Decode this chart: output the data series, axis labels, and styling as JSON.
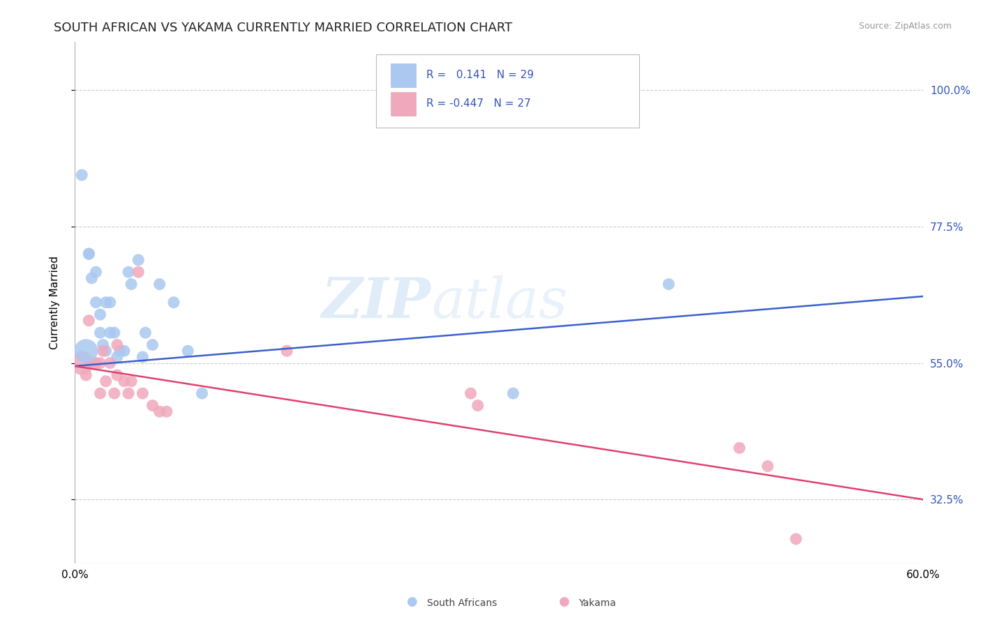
{
  "title": "SOUTH AFRICAN VS YAKAMA CURRENTLY MARRIED CORRELATION CHART",
  "source": "Source: ZipAtlas.com",
  "ylabel": "Currently Married",
  "ytick_labels": [
    "32.5%",
    "55.0%",
    "77.5%",
    "100.0%"
  ],
  "ytick_values": [
    0.325,
    0.55,
    0.775,
    1.0
  ],
  "xlim": [
    0.0,
    0.6
  ],
  "ylim": [
    0.22,
    1.08
  ],
  "legend_r_blue": "0.141",
  "legend_n_blue": "29",
  "legend_r_pink": "-0.447",
  "legend_n_pink": "27",
  "blue_color": "#aac8f0",
  "pink_color": "#f0a8bc",
  "blue_line_color": "#3a60cc",
  "pink_line_color": "#e04070",
  "watermark_zip": "ZIP",
  "watermark_atlas": "atlas",
  "grid_color": "#cccccc",
  "background_color": "#ffffff",
  "title_fontsize": 13,
  "axis_label_fontsize": 11,
  "tick_fontsize": 11,
  "blue_line_y0": 0.545,
  "blue_line_y1": 0.66,
  "pink_line_y0": 0.545,
  "pink_line_y1": 0.325,
  "blue_scatter_x": [
    0.005,
    0.01,
    0.01,
    0.012,
    0.015,
    0.015,
    0.018,
    0.018,
    0.02,
    0.022,
    0.022,
    0.025,
    0.025,
    0.028,
    0.03,
    0.032,
    0.035,
    0.038,
    0.04,
    0.045,
    0.048,
    0.05,
    0.055,
    0.06,
    0.07,
    0.08,
    0.09,
    0.31,
    0.42
  ],
  "blue_scatter_y": [
    0.86,
    0.73,
    0.73,
    0.69,
    0.65,
    0.7,
    0.63,
    0.6,
    0.58,
    0.57,
    0.65,
    0.6,
    0.65,
    0.6,
    0.56,
    0.57,
    0.57,
    0.7,
    0.68,
    0.72,
    0.56,
    0.6,
    0.58,
    0.68,
    0.65,
    0.57,
    0.5,
    0.5,
    0.68
  ],
  "blue_scatter_size": [
    150,
    150,
    150,
    150,
    150,
    150,
    150,
    150,
    150,
    150,
    150,
    150,
    150,
    150,
    150,
    150,
    150,
    150,
    150,
    150,
    150,
    150,
    150,
    150,
    150,
    150,
    150,
    150,
    150
  ],
  "pink_scatter_x": [
    0.005,
    0.008,
    0.01,
    0.012,
    0.015,
    0.018,
    0.018,
    0.02,
    0.022,
    0.025,
    0.028,
    0.03,
    0.03,
    0.035,
    0.038,
    0.04,
    0.045,
    0.048,
    0.055,
    0.06,
    0.065,
    0.15,
    0.28,
    0.285,
    0.47,
    0.49,
    0.51
  ],
  "pink_scatter_y": [
    0.55,
    0.53,
    0.62,
    0.55,
    0.55,
    0.55,
    0.5,
    0.57,
    0.52,
    0.55,
    0.5,
    0.53,
    0.58,
    0.52,
    0.5,
    0.52,
    0.7,
    0.5,
    0.48,
    0.47,
    0.47,
    0.57,
    0.5,
    0.48,
    0.41,
    0.38,
    0.26
  ],
  "pink_scatter_size": [
    600,
    150,
    150,
    150,
    150,
    150,
    150,
    150,
    150,
    150,
    150,
    150,
    150,
    150,
    150,
    150,
    150,
    150,
    150,
    150,
    150,
    150,
    150,
    150,
    150,
    150,
    150
  ]
}
